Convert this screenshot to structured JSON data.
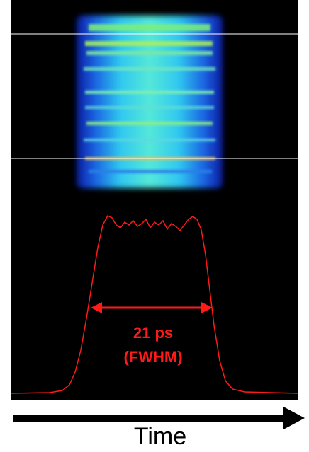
{
  "annotation": {
    "value": "21 ps",
    "note": "(FWHM)"
  },
  "axis": {
    "label": "Time"
  }
}
